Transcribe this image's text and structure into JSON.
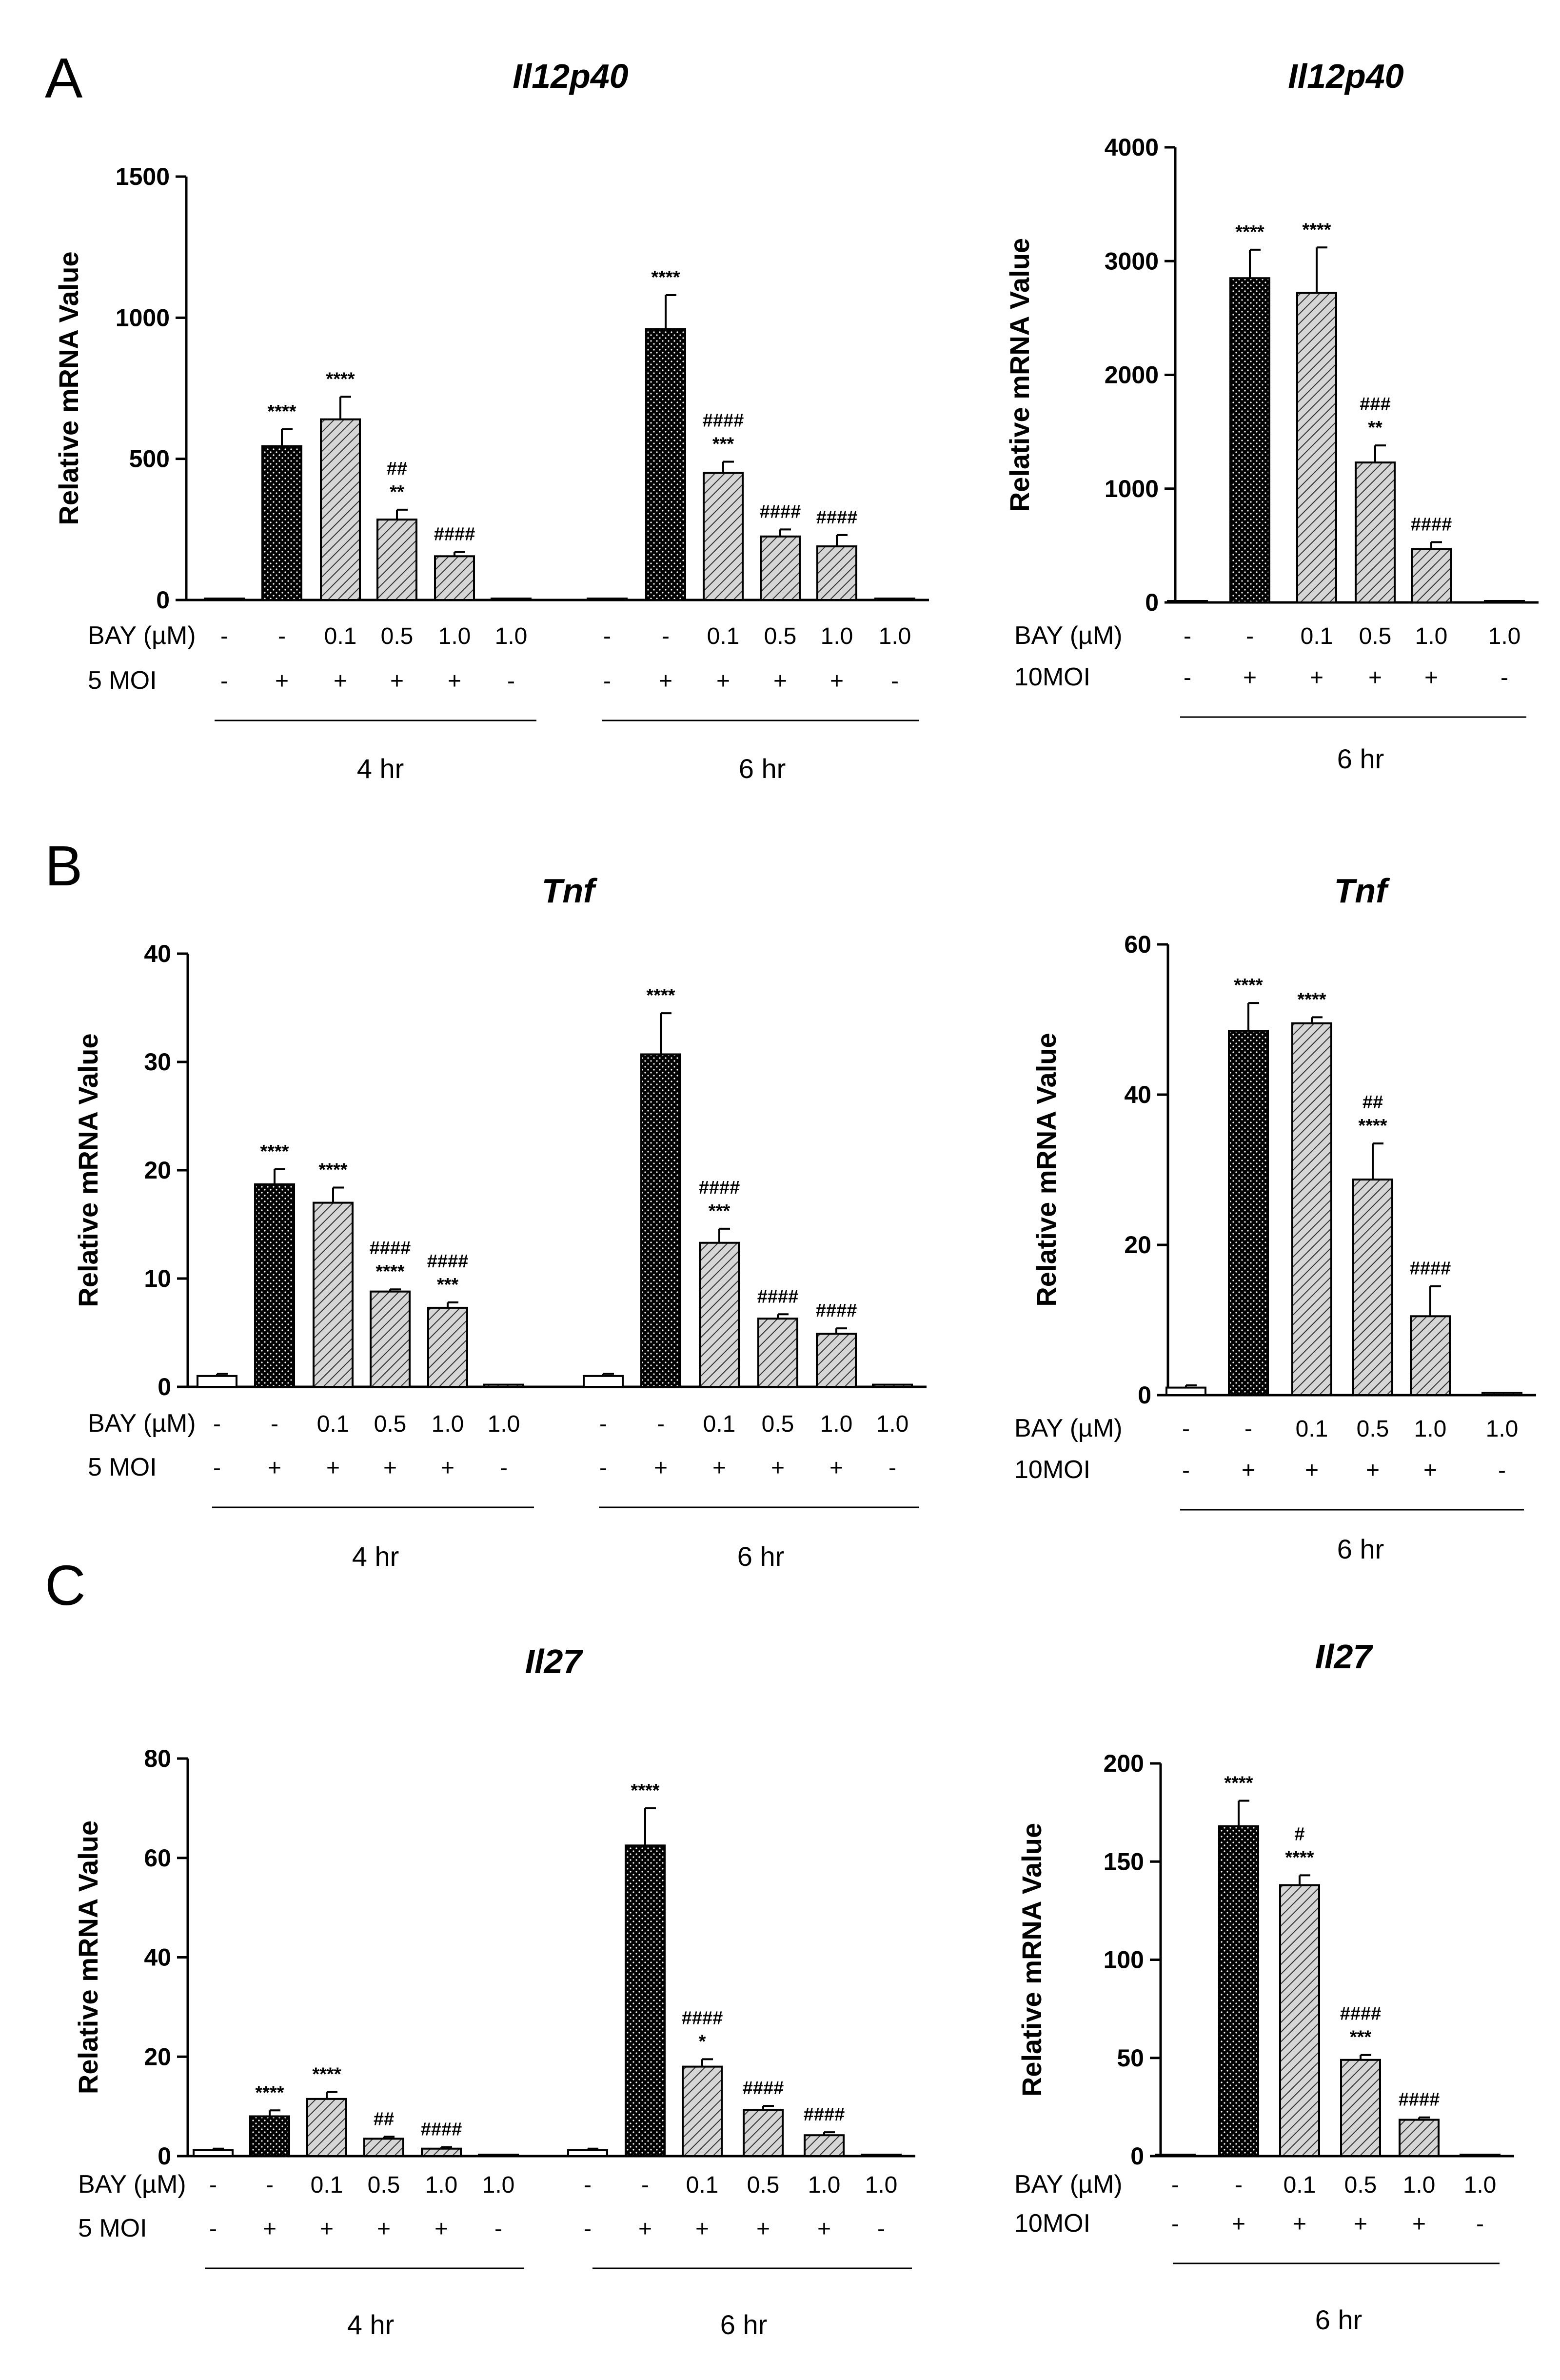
{
  "panel_letters": [
    "A",
    "B",
    "C"
  ],
  "pattern_colors": {
    "ink": "#000000",
    "control_fill": "#ffffff",
    "dots_fill": "#000000",
    "hatch_fill": "#cfcfcf"
  },
  "chart_data": [
    {
      "type": "bar",
      "panel": "A",
      "title": "Il12p40",
      "ylabel": "Relative mRNA Value",
      "ylim": [
        0,
        1500
      ],
      "yticks": [
        "0",
        "500",
        "1000",
        "1500"
      ],
      "condition_labels": [
        "BAY (µM)",
        "5 MOI"
      ],
      "groups": [
        {
          "name": "4 hr",
          "bay": [
            "-",
            "-",
            "0.1",
            "0.5",
            "1.0",
            "1.0"
          ],
          "moi": [
            "-",
            "+",
            "+",
            "+",
            "+",
            "-"
          ],
          "values": [
            3,
            545,
            640,
            285,
            155,
            2
          ],
          "errors": [
            0,
            60,
            80,
            35,
            15,
            0
          ],
          "fills": [
            "control",
            "dots",
            "hatch",
            "hatch",
            "hatch",
            "hatch"
          ],
          "sig": [
            [],
            [
              "****"
            ],
            [
              "****"
            ],
            [
              "##",
              "**"
            ],
            [
              "####"
            ],
            []
          ]
        },
        {
          "name": "6 hr",
          "bay": [
            "-",
            "-",
            "0.1",
            "0.5",
            "1.0",
            "1.0"
          ],
          "moi": [
            "-",
            "+",
            "+",
            "+",
            "+",
            "-"
          ],
          "values": [
            3,
            960,
            450,
            225,
            190,
            3
          ],
          "errors": [
            0,
            120,
            40,
            25,
            40,
            0
          ],
          "fills": [
            "control",
            "dots",
            "hatch",
            "hatch",
            "hatch",
            "hatch"
          ],
          "sig": [
            [],
            [
              "****"
            ],
            [
              "####",
              "***"
            ],
            [
              "####"
            ],
            [
              "####"
            ],
            []
          ]
        }
      ]
    },
    {
      "type": "bar",
      "panel": "A",
      "title": "Il12p40",
      "ylabel": "Relative mRNA Value",
      "ylim": [
        0,
        4000
      ],
      "yticks": [
        "0",
        "1000",
        "2000",
        "3000",
        "4000"
      ],
      "condition_labels": [
        "BAY (µM)",
        "10MOI"
      ],
      "groups": [
        {
          "name": "6 hr",
          "bay": [
            "-",
            "-",
            "0.1",
            "0.5",
            "1.0",
            "1.0"
          ],
          "moi": [
            "-",
            "+",
            "+",
            "+",
            "+",
            "-"
          ],
          "values": [
            5,
            2850,
            2720,
            1230,
            470,
            5
          ],
          "errors": [
            0,
            250,
            400,
            150,
            60,
            0
          ],
          "fills": [
            "control",
            "dots",
            "hatch",
            "hatch",
            "hatch",
            "hatch"
          ],
          "sig": [
            [],
            [
              "****"
            ],
            [
              "****"
            ],
            [
              "###",
              "**"
            ],
            [
              "####"
            ],
            []
          ]
        }
      ]
    },
    {
      "type": "bar",
      "panel": "B",
      "title": "Tnf",
      "ylabel": "Relative mRNA Value",
      "ylim": [
        0,
        40
      ],
      "yticks": [
        "0",
        "10",
        "20",
        "30",
        "40"
      ],
      "condition_labels": [
        "BAY (µM)",
        "5 MOI"
      ],
      "groups": [
        {
          "name": "4 hr",
          "bay": [
            "-",
            "-",
            "0.1",
            "0.5",
            "1.0",
            "1.0"
          ],
          "moi": [
            "-",
            "+",
            "+",
            "+",
            "+",
            "-"
          ],
          "values": [
            1,
            18.7,
            17,
            8.8,
            7.3,
            0.2
          ],
          "errors": [
            0.2,
            1.4,
            1.4,
            0.2,
            0.5,
            0
          ],
          "fills": [
            "control",
            "dots",
            "hatch",
            "hatch",
            "hatch",
            "hatch"
          ],
          "sig": [
            [],
            [
              "****"
            ],
            [
              "****"
            ],
            [
              "####",
              "****"
            ],
            [
              "####",
              "***"
            ],
            []
          ]
        },
        {
          "name": "6 hr",
          "bay": [
            "-",
            "-",
            "0.1",
            "0.5",
            "1.0",
            "1.0"
          ],
          "moi": [
            "-",
            "+",
            "+",
            "+",
            "+",
            "-"
          ],
          "values": [
            1,
            30.7,
            13.3,
            6.3,
            4.9,
            0.2
          ],
          "errors": [
            0.2,
            3.8,
            1.3,
            0.4,
            0.5,
            0
          ],
          "fills": [
            "control",
            "dots",
            "hatch",
            "hatch",
            "hatch",
            "hatch"
          ],
          "sig": [
            [],
            [
              "****"
            ],
            [
              "####",
              "***"
            ],
            [
              "####"
            ],
            [
              "####"
            ],
            []
          ]
        }
      ]
    },
    {
      "type": "bar",
      "panel": "B",
      "title": "Tnf",
      "ylabel": "Relative mRNA Value",
      "ylim": [
        0,
        60
      ],
      "yticks": [
        "0",
        "20",
        "40",
        "60"
      ],
      "condition_labels": [
        "BAY (µM)",
        "10MOI"
      ],
      "groups": [
        {
          "name": "6 hr",
          "bay": [
            "-",
            "-",
            "0.1",
            "0.5",
            "1.0",
            "1.0"
          ],
          "moi": [
            "-",
            "+",
            "+",
            "+",
            "+",
            "-"
          ],
          "values": [
            1,
            48.5,
            49.5,
            28.7,
            10.5,
            0.3
          ],
          "errors": [
            0.3,
            3.7,
            0.8,
            4.8,
            4.0,
            0
          ],
          "fills": [
            "control",
            "dots",
            "hatch",
            "hatch",
            "hatch",
            "hatch"
          ],
          "sig": [
            [],
            [
              "****"
            ],
            [
              "****"
            ],
            [
              "##",
              "****"
            ],
            [
              "####"
            ],
            []
          ]
        }
      ]
    },
    {
      "type": "bar",
      "panel": "C",
      "title": "Il27",
      "ylabel": "Relative mRNA Value",
      "ylim": [
        0,
        80
      ],
      "yticks": [
        "0",
        "20",
        "40",
        "60",
        "80"
      ],
      "condition_labels": [
        "BAY (µM)",
        "5 MOI"
      ],
      "groups": [
        {
          "name": "4 hr",
          "bay": [
            "-",
            "-",
            "0.1",
            "0.5",
            "1.0",
            "1.0"
          ],
          "moi": [
            "-",
            "+",
            "+",
            "+",
            "+",
            "-"
          ],
          "values": [
            1.2,
            8,
            11.5,
            3.5,
            1.5,
            0.2
          ],
          "errors": [
            0.3,
            1.2,
            1.4,
            0.4,
            0.3,
            0
          ],
          "fills": [
            "control",
            "dots",
            "hatch",
            "hatch",
            "hatch",
            "hatch"
          ],
          "sig": [
            [],
            [
              "****"
            ],
            [
              "****"
            ],
            [
              "##"
            ],
            [
              "####"
            ],
            []
          ]
        },
        {
          "name": "6 hr",
          "bay": [
            "-",
            "-",
            "0.1",
            "0.5",
            "1.0",
            "1.0"
          ],
          "moi": [
            "-",
            "+",
            "+",
            "+",
            "+",
            "-"
          ],
          "values": [
            1.2,
            62.5,
            18,
            9.3,
            4.2,
            0.2
          ],
          "errors": [
            0.3,
            7.5,
            1.5,
            0.8,
            0.6,
            0
          ],
          "fills": [
            "control",
            "dots",
            "hatch",
            "hatch",
            "hatch",
            "hatch"
          ],
          "sig": [
            [],
            [
              "****"
            ],
            [
              "####",
              "*"
            ],
            [
              "####"
            ],
            [
              "####"
            ],
            []
          ]
        }
      ]
    },
    {
      "type": "bar",
      "panel": "C",
      "title": "Il27",
      "ylabel": "Relative mRNA Value",
      "ylim": [
        0,
        200
      ],
      "yticks": [
        "0",
        "50",
        "100",
        "150",
        "200"
      ],
      "condition_labels": [
        "BAY (µM)",
        "10MOI"
      ],
      "groups": [
        {
          "name": "6 hr",
          "bay": [
            "-",
            "-",
            "0.1",
            "0.5",
            "1.0",
            "1.0"
          ],
          "moi": [
            "-",
            "+",
            "+",
            "+",
            "+",
            "-"
          ],
          "values": [
            0.5,
            168,
            138,
            49,
            18.5,
            0.3
          ],
          "errors": [
            0,
            13,
            5,
            2.5,
            1.2,
            0
          ],
          "fills": [
            "control",
            "dots",
            "hatch",
            "hatch",
            "hatch",
            "hatch"
          ],
          "sig": [
            [],
            [
              "****"
            ],
            [
              "#",
              "****"
            ],
            [
              "####",
              "***"
            ],
            [
              "####"
            ],
            []
          ]
        }
      ]
    }
  ]
}
